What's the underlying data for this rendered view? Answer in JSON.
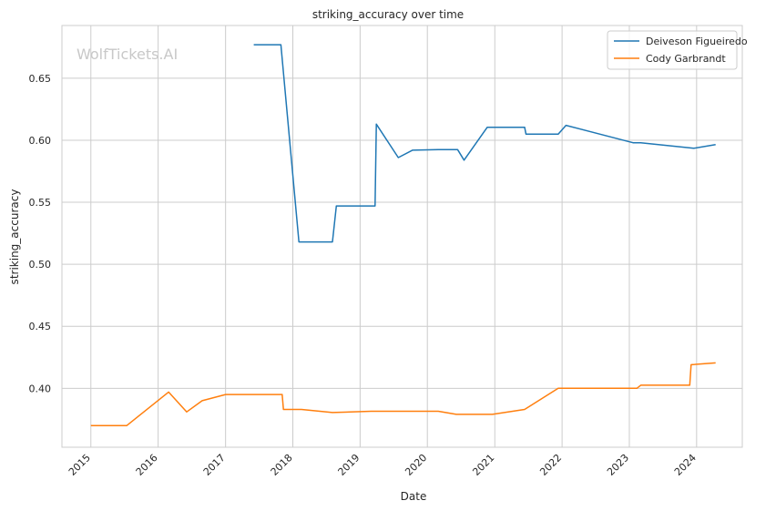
{
  "chart_data": {
    "type": "line",
    "title": "striking_accuracy over time",
    "xlabel": "Date",
    "ylabel": "striking_accuracy",
    "watermark": "WolfTickets.AI",
    "xlim": [
      "2014-07-28",
      "2024-09-05"
    ],
    "ylim": [
      0.3525,
      0.6925
    ],
    "x_ticks": [
      "2015",
      "2016",
      "2017",
      "2018",
      "2019",
      "2020",
      "2021",
      "2022",
      "2023",
      "2024"
    ],
    "y_ticks": [
      "0.40",
      "0.45",
      "0.50",
      "0.55",
      "0.60",
      "0.65"
    ],
    "grid": true,
    "legend_position": "top-right",
    "series": [
      {
        "name": "Deiveson Figueiredo",
        "color": "#1f77b4",
        "points": [
          [
            "2017-06-03",
            0.677
          ],
          [
            "2017-10-28",
            0.677
          ],
          [
            "2018-02-03",
            0.518
          ],
          [
            "2018-08-04",
            0.518
          ],
          [
            "2018-08-25",
            0.547
          ],
          [
            "2019-03-23",
            0.547
          ],
          [
            "2019-03-30",
            0.613
          ],
          [
            "2019-07-27",
            0.586
          ],
          [
            "2019-10-12",
            0.592
          ],
          [
            "2020-02-29",
            0.5925
          ],
          [
            "2020-06-13",
            0.5925
          ],
          [
            "2020-07-18",
            0.584
          ],
          [
            "2020-11-21",
            0.6105
          ],
          [
            "2021-06-12",
            0.6105
          ],
          [
            "2021-06-19",
            0.605
          ],
          [
            "2021-12-11",
            0.605
          ],
          [
            "2022-01-22",
            0.612
          ],
          [
            "2023-01-21",
            0.598
          ],
          [
            "2023-03-04",
            0.598
          ],
          [
            "2023-12-16",
            0.5935
          ],
          [
            "2024-04-13",
            0.5965
          ]
        ]
      },
      {
        "name": "Cody Garbrandt",
        "color": "#ff7f0e",
        "points": [
          [
            "2015-01-01",
            0.37
          ],
          [
            "2015-07-15",
            0.37
          ],
          [
            "2016-02-27",
            0.397
          ],
          [
            "2016-06-04",
            0.381
          ],
          [
            "2016-08-27",
            0.39
          ],
          [
            "2017-01-01",
            0.395
          ],
          [
            "2017-11-04",
            0.395
          ],
          [
            "2017-11-11",
            0.383
          ],
          [
            "2018-02-17",
            0.383
          ],
          [
            "2018-08-04",
            0.3805
          ],
          [
            "2019-03-02",
            0.3815
          ],
          [
            "2020-02-29",
            0.3815
          ],
          [
            "2020-06-06",
            0.379
          ],
          [
            "2020-12-19",
            0.379
          ],
          [
            "2021-06-12",
            0.383
          ],
          [
            "2021-12-11",
            0.4
          ],
          [
            "2023-02-11",
            0.4
          ],
          [
            "2023-03-04",
            0.4025
          ],
          [
            "2023-11-25",
            0.4025
          ],
          [
            "2023-12-02",
            0.419
          ],
          [
            "2024-04-13",
            0.4205
          ]
        ]
      }
    ]
  }
}
